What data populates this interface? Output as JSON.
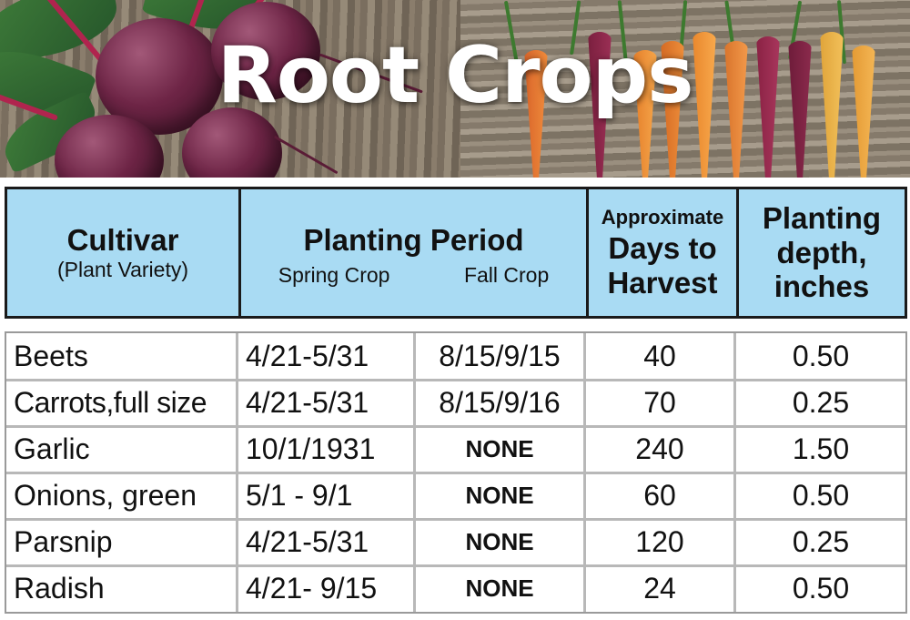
{
  "title": "Root Crops",
  "header": {
    "cultivar": "Cultivar",
    "cultivar_sub": "(Plant Variety)",
    "planting_period": "Planting Period",
    "spring": "Spring Crop",
    "fall": "Fall Crop",
    "days_line1": "Approximate",
    "days_line2": "Days to",
    "days_line3": "Harvest",
    "depth_line1": "Planting",
    "depth_line2": "depth,",
    "depth_line3": "inches"
  },
  "rows": [
    {
      "cultivar": "Beets",
      "spring": "4/21-5/31",
      "fall": "8/15/9/15",
      "days": "40",
      "depth": "0.50"
    },
    {
      "cultivar": "Carrots,full size",
      "spring": "4/21-5/31",
      "fall": "8/15/9/16",
      "days": "70",
      "depth": "0.25"
    },
    {
      "cultivar": "Garlic",
      "spring": "10/1/1931",
      "fall": "NONE",
      "days": "240",
      "depth": "1.50"
    },
    {
      "cultivar": "Onions, green",
      "spring": "5/1 - 9/1",
      "fall": "NONE",
      "days": "60",
      "depth": "0.50"
    },
    {
      "cultivar": "Parsnip",
      "spring": "4/21-5/31",
      "fall": "NONE",
      "days": "120",
      "depth": "0.25"
    },
    {
      "cultivar": "Radish",
      "spring": "4/21- 9/15",
      "fall": "NONE",
      "days": "24",
      "depth": "0.50"
    }
  ],
  "colors": {
    "header_bg": "#a9dbf3",
    "title": "#ffffff"
  }
}
